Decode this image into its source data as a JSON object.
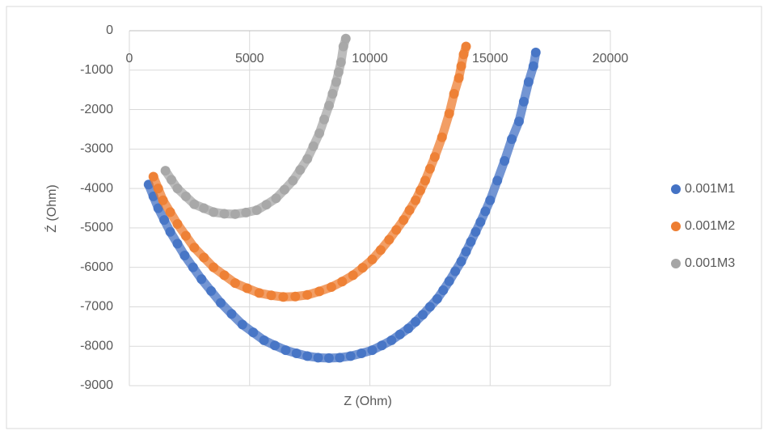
{
  "chart_data": {
    "type": "scatter",
    "x_label": "Z (Ohm)",
    "y_label": "Ź (Ohm)",
    "xlim": [
      0,
      20000
    ],
    "xticks": [
      0,
      5000,
      10000,
      15000,
      20000
    ],
    "ylim": [
      -9000,
      0
    ],
    "yticks": [
      0,
      -1000,
      -2000,
      -3000,
      -4000,
      -5000,
      -6000,
      -7000,
      -8000,
      -9000
    ],
    "grid": true,
    "legend": "right",
    "series": [
      {
        "name": "0.001M1",
        "color": "#4472c4",
        "x": [
          800,
          1000,
          1200,
          1450,
          1700,
          2000,
          2300,
          2650,
          3000,
          3400,
          3800,
          4250,
          4700,
          5150,
          5600,
          6050,
          6500,
          6950,
          7400,
          7850,
          8300,
          8750,
          9200,
          9650,
          10100,
          10500,
          10900,
          11250,
          11600,
          11900,
          12200,
          12500,
          12800,
          13050,
          13300,
          13550,
          13800,
          14000,
          14200,
          14400,
          14600,
          14800,
          15000,
          15300,
          15600,
          15900,
          16200,
          16400,
          16600,
          16800,
          16900
        ],
        "values": [
          -3900,
          -4200,
          -4500,
          -4800,
          -5100,
          -5400,
          -5700,
          -6000,
          -6300,
          -6600,
          -6900,
          -7180,
          -7450,
          -7650,
          -7850,
          -7980,
          -8100,
          -8180,
          -8250,
          -8290,
          -8300,
          -8290,
          -8250,
          -8180,
          -8100,
          -7980,
          -7850,
          -7700,
          -7550,
          -7380,
          -7200,
          -7000,
          -6800,
          -6580,
          -6350,
          -6100,
          -5850,
          -5600,
          -5350,
          -5100,
          -4850,
          -4580,
          -4300,
          -3800,
          -3300,
          -2750,
          -2300,
          -1800,
          -1300,
          -900,
          -550
        ]
      },
      {
        "name": "0.001M2",
        "color": "#ed7d31",
        "x": [
          1000,
          1200,
          1400,
          1700,
          2000,
          2350,
          2700,
          3100,
          3500,
          3950,
          4400,
          4900,
          5400,
          5900,
          6400,
          6900,
          7400,
          7900,
          8400,
          8850,
          9300,
          9700,
          10100,
          10450,
          10800,
          11100,
          11400,
          11650,
          11900,
          12100,
          12300,
          12500,
          12700,
          13000,
          13300,
          13500,
          13700,
          13800,
          13900,
          14000
        ],
        "values": [
          -3700,
          -4000,
          -4300,
          -4600,
          -4900,
          -5200,
          -5500,
          -5750,
          -6000,
          -6200,
          -6400,
          -6530,
          -6650,
          -6710,
          -6750,
          -6740,
          -6700,
          -6610,
          -6500,
          -6360,
          -6200,
          -6010,
          -5800,
          -5560,
          -5300,
          -5050,
          -4800,
          -4550,
          -4300,
          -4050,
          -3800,
          -3500,
          -3200,
          -2700,
          -2100,
          -1600,
          -1200,
          -900,
          -600,
          -400
        ]
      },
      {
        "name": "0.001M3",
        "color": "#a5a5a5",
        "x": [
          1500,
          1750,
          2000,
          2350,
          2700,
          3100,
          3500,
          3950,
          4400,
          4850,
          5300,
          5700,
          6100,
          6450,
          6800,
          7100,
          7400,
          7650,
          7900,
          8100,
          8300,
          8450,
          8600,
          8700,
          8800,
          8900,
          9000
        ],
        "values": [
          -3550,
          -3780,
          -4000,
          -4200,
          -4400,
          -4500,
          -4600,
          -4640,
          -4650,
          -4610,
          -4550,
          -4410,
          -4250,
          -4030,
          -3800,
          -3530,
          -3250,
          -2930,
          -2600,
          -2250,
          -1900,
          -1600,
          -1300,
          -1050,
          -800,
          -400,
          -200
        ]
      }
    ]
  }
}
